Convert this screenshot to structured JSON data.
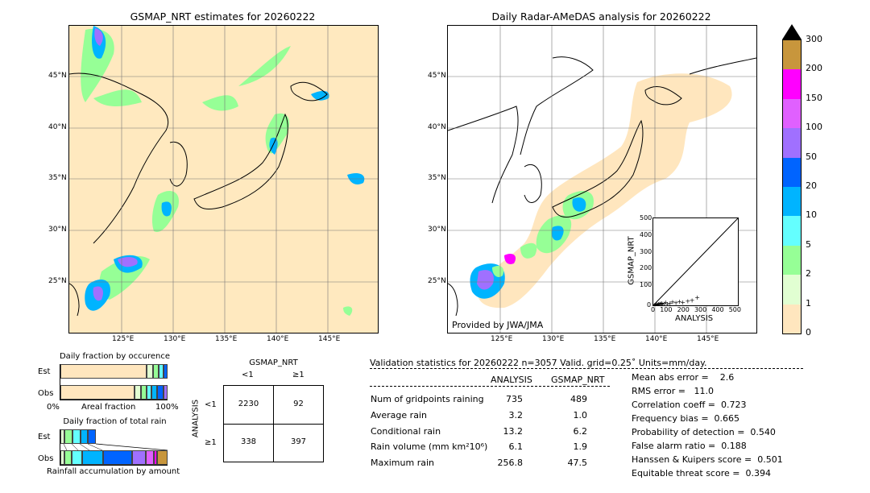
{
  "left_map": {
    "title": "GSMAP_NRT estimates for 20260222",
    "lat_labels": [
      "45°N",
      "40°N",
      "35°N",
      "30°N",
      "25°N"
    ],
    "lon_labels": [
      "125°E",
      "130°E",
      "135°E",
      "140°E",
      "145°E"
    ]
  },
  "right_map": {
    "title": "Daily Radar-AMeDAS analysis for 20260222",
    "lat_labels": [
      "45°N",
      "40°N",
      "35°N",
      "30°N",
      "25°N"
    ],
    "lon_labels": [
      "125°E",
      "130°E",
      "135°E",
      "140°E",
      "145°E"
    ],
    "credit": "Provided by JWA/JMA"
  },
  "colorbar": {
    "ticks": [
      "300",
      "200",
      "150",
      "100",
      "50",
      "20",
      "10",
      "5",
      "2",
      "1",
      "0"
    ],
    "colors": [
      "#c8963c",
      "#ff00ff",
      "#e060ff",
      "#a070ff",
      "#0064ff",
      "#00b4ff",
      "#64ffff",
      "#96ff96",
      "#e1ffd2",
      "#ffe6be"
    ]
  },
  "chart_data": [
    {
      "type": "scatter",
      "title": "",
      "xlabel": "ANALYSIS",
      "ylabel": "GSMAP_NRT",
      "xlim": [
        0,
        500
      ],
      "ylim": [
        0,
        500
      ],
      "xticks": [
        "0",
        "100",
        "200",
        "300",
        "400",
        "500"
      ],
      "yticks": [
        "0",
        "100",
        "200",
        "300",
        "400",
        "500"
      ],
      "points": [
        [
          2,
          3
        ],
        [
          5,
          2
        ],
        [
          8,
          4
        ],
        [
          10,
          6
        ],
        [
          14,
          3
        ],
        [
          18,
          8
        ],
        [
          22,
          5
        ],
        [
          26,
          10
        ],
        [
          30,
          7
        ],
        [
          35,
          12
        ],
        [
          40,
          9
        ],
        [
          45,
          15
        ],
        [
          50,
          8
        ],
        [
          60,
          12
        ],
        [
          70,
          18
        ],
        [
          80,
          10
        ],
        [
          95,
          14
        ],
        [
          110,
          20
        ],
        [
          130,
          16
        ],
        [
          150,
          22
        ],
        [
          170,
          18
        ],
        [
          200,
          25
        ],
        [
          225,
          30
        ],
        [
          256,
          47
        ]
      ]
    },
    {
      "type": "bar",
      "title": "Daily fraction by occurence",
      "categories": [
        "Est",
        "Obs"
      ],
      "xlabel": "Areal fraction",
      "xticks": [
        "0%",
        "100%"
      ]
    },
    {
      "type": "bar",
      "title": "Daily fraction of total rain",
      "categories": [
        "Est",
        "Obs"
      ],
      "xlabel": "Rainfall accumulation by amount"
    }
  ],
  "contingency": {
    "title": "GSMAP_NRT",
    "col_labels": [
      "<1",
      "≥1"
    ],
    "row_axis": "ANALYSIS",
    "row_labels": [
      "<1",
      "≥1"
    ],
    "cells": [
      [
        "2230",
        "92"
      ],
      [
        "338",
        "397"
      ]
    ]
  },
  "validation": {
    "header": "Validation statistics for 20260222  n=3057 Valid. grid=0.25˚ Units=mm/day.",
    "col1": "ANALYSIS",
    "col2": "GSMAP_NRT",
    "rows": [
      {
        "label": "Num of gridpoints raining",
        "a": "735",
        "g": "489"
      },
      {
        "label": "Average rain",
        "a": "3.2",
        "g": "1.0"
      },
      {
        "label": "Conditional rain",
        "a": "13.2",
        "g": "6.2"
      },
      {
        "label": "Rain volume (mm km²10⁶)",
        "a": "6.1",
        "g": "1.9"
      },
      {
        "label": "Maximum rain",
        "a": "256.8",
        "g": "47.5"
      }
    ],
    "scores": [
      "Mean abs error =    2.6",
      "RMS error =   11.0",
      "Correlation coeff =  0.723",
      "Frequency bias =  0.665",
      "Probability of detection =  0.540",
      "False alarm ratio =  0.188",
      "Hanssen & Kuipers score =  0.501",
      "Equitable threat score =  0.394"
    ]
  }
}
